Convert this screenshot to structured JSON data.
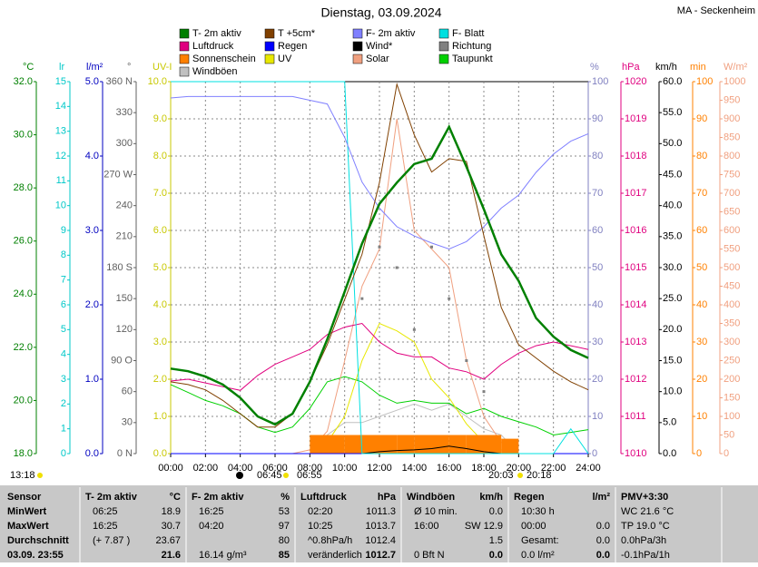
{
  "chart_data": {
    "type": "line",
    "title": "Dienstag, 03.09.2024",
    "location": "MA - Seckenheim",
    "x": [
      0,
      1,
      2,
      3,
      4,
      5,
      6,
      7,
      8,
      9,
      10,
      11,
      12,
      13,
      14,
      15,
      16,
      17,
      18,
      19,
      20,
      21,
      22,
      23,
      24
    ],
    "xlim": [
      0,
      24
    ],
    "xticks": [
      {
        "value": 0,
        "label": "00:00"
      },
      {
        "value": 2,
        "label": "02:00"
      },
      {
        "value": 4,
        "label": "04:00"
      },
      {
        "value": 6,
        "label": "06:00"
      },
      {
        "value": 8,
        "label": "08:00"
      },
      {
        "value": 10,
        "label": "10:00"
      },
      {
        "value": 12,
        "label": "12:00"
      },
      {
        "value": 14,
        "label": "14:00"
      },
      {
        "value": 16,
        "label": "16:00"
      },
      {
        "value": 18,
        "label": "18:00"
      },
      {
        "value": 20,
        "label": "20:00"
      },
      {
        "value": 22,
        "label": "22:00"
      },
      {
        "value": 24,
        "label": "24:00"
      }
    ],
    "grid": true,
    "axes": [
      {
        "unit": "°C",
        "color": "#008000",
        "lim": [
          18,
          32
        ],
        "ticks": [
          {
            "value": 18,
            "label": "18.0"
          },
          {
            "value": 20,
            "label": "20.0"
          },
          {
            "value": 22,
            "label": "22.0"
          },
          {
            "value": 24,
            "label": "24.0"
          },
          {
            "value": 26,
            "label": "26.0"
          },
          {
            "value": 28,
            "label": "28.0"
          },
          {
            "value": 30,
            "label": "30.0"
          },
          {
            "value": 32,
            "label": "32.0"
          }
        ]
      },
      {
        "unit": "lr",
        "color": "#00c8c8",
        "lim": [
          0,
          15
        ],
        "ticks": [
          0,
          1,
          2,
          3,
          4,
          5,
          6,
          7,
          8,
          9,
          10,
          11,
          12,
          13,
          14,
          15
        ]
      },
      {
        "unit": "l/m²",
        "color": "#0000c0",
        "lim": [
          0,
          5
        ],
        "ticks": [
          {
            "value": 0,
            "label": "0.0"
          },
          {
            "value": 1,
            "label": "1.0"
          },
          {
            "value": 2,
            "label": "2.0"
          },
          {
            "value": 3,
            "label": "3.0"
          },
          {
            "value": 4,
            "label": "4.0"
          },
          {
            "value": 5,
            "label": "5.0"
          }
        ]
      },
      {
        "unit": "°",
        "color": "#606060",
        "lim": [
          0,
          360
        ],
        "ticks": [
          {
            "value": 0,
            "label": "0 N"
          },
          30,
          60,
          {
            "value": 90,
            "label": "90 O"
          },
          120,
          150,
          {
            "value": 180,
            "label": "180 S"
          },
          210,
          240,
          {
            "value": 270,
            "label": "270 W"
          },
          300,
          330,
          {
            "value": 360,
            "label": "360 N"
          }
        ]
      },
      {
        "unit": "UV-I",
        "color": "#c8c800",
        "lim": [
          0,
          10
        ],
        "ticks": [
          {
            "value": 0,
            "label": "0.0"
          },
          {
            "value": 1,
            "label": "1.0"
          },
          {
            "value": 2,
            "label": "2.0"
          },
          {
            "value": 3,
            "label": "3.0"
          },
          {
            "value": 4,
            "label": "4.0"
          },
          {
            "value": 5,
            "label": "5.0"
          },
          {
            "value": 6,
            "label": "6.0"
          },
          {
            "value": 7,
            "label": "7.0"
          },
          {
            "value": 8,
            "label": "8.0"
          },
          {
            "value": 9,
            "label": "9.0"
          },
          {
            "value": 10,
            "label": "10.0"
          }
        ]
      },
      {
        "unit": "%",
        "color": "#8080c0",
        "lim": [
          0,
          100
        ],
        "ticks": [
          0,
          10,
          20,
          30,
          40,
          50,
          60,
          70,
          80,
          90,
          100
        ]
      },
      {
        "unit": "hPa",
        "color": "#e0007f",
        "lim": [
          1010,
          1020
        ],
        "ticks": [
          1010,
          1011,
          1012,
          1013,
          1014,
          1015,
          1016,
          1017,
          1018,
          1019,
          1020
        ]
      },
      {
        "unit": "km/h",
        "color": "#000000",
        "lim": [
          0,
          60
        ],
        "ticks": [
          {
            "value": 0,
            "label": "0.0"
          },
          {
            "value": 5,
            "label": "5.0"
          },
          {
            "value": 10,
            "label": "10.0"
          },
          {
            "value": 15,
            "label": "15.0"
          },
          {
            "value": 20,
            "label": "20.0"
          },
          {
            "value": 25,
            "label": "25.0"
          },
          {
            "value": 30,
            "label": "30.0"
          },
          {
            "value": 35,
            "label": "35.0"
          },
          {
            "value": 40,
            "label": "40.0"
          },
          {
            "value": 45,
            "label": "45.0"
          },
          {
            "value": 50,
            "label": "50.0"
          },
          {
            "value": 55,
            "label": "55.0"
          },
          {
            "value": 60,
            "label": "60.0"
          }
        ]
      },
      {
        "unit": "min",
        "color": "#ff8000",
        "lim": [
          0,
          100
        ],
        "ticks": [
          0,
          10,
          20,
          30,
          40,
          50,
          60,
          70,
          80,
          90,
          100
        ]
      },
      {
        "unit": "W/m²",
        "color": "#f0a080",
        "lim": [
          0,
          1000
        ],
        "ticks": [
          0,
          50,
          100,
          150,
          200,
          250,
          300,
          350,
          400,
          450,
          500,
          550,
          600,
          650,
          700,
          750,
          800,
          850,
          900,
          950,
          1000
        ]
      }
    ],
    "series": [
      {
        "name": "T- 2m aktiv",
        "color": "#008000",
        "axis": 0,
        "style": "line",
        "values": [
          21.2,
          21.1,
          20.9,
          20.6,
          20.1,
          19.4,
          19.1,
          19.5,
          20.7,
          22.3,
          24.1,
          25.9,
          27.4,
          28.2,
          28.9,
          29.1,
          30.3,
          28.8,
          27.2,
          25.5,
          24.5,
          23.1,
          22.4,
          21.9,
          21.6
        ]
      },
      {
        "name": "T +5cm*",
        "color": "#804000",
        "axis": 0,
        "style": "line",
        "values": [
          20.7,
          20.6,
          20.4,
          20.0,
          19.5,
          19.0,
          19.0,
          19.5,
          20.7,
          22.1,
          23.8,
          25.5,
          28.2,
          31.9,
          30.0,
          28.6,
          29.1,
          29.0,
          26.2,
          23.5,
          22.1,
          21.6,
          21.1,
          20.7,
          20.4
        ]
      },
      {
        "name": "F- 2m aktiv",
        "color": "#8080ff",
        "axis": 5,
        "style": "line",
        "values": [
          95.6,
          96,
          96,
          96,
          96,
          96,
          96,
          96,
          95,
          94,
          85,
          73,
          66,
          61,
          58.5,
          56.6,
          55,
          57,
          61,
          66,
          69.5,
          75.6,
          80.5,
          84,
          86
        ]
      },
      {
        "name": "F- Blatt",
        "color": "#00e0e0",
        "axis": 1,
        "style": "line",
        "values": [
          15,
          15,
          15,
          15,
          15,
          15,
          15,
          15,
          15,
          15,
          15,
          0,
          0,
          0,
          0,
          0,
          0,
          0,
          0,
          0,
          0,
          0,
          0,
          1,
          0
        ]
      },
      {
        "name": "Luftdruck",
        "color": "#e0007f",
        "axis": 6,
        "style": "line",
        "values": [
          1011.95,
          1012.0,
          1011.9,
          1011.8,
          1011.7,
          1012.1,
          1012.4,
          1012.6,
          1012.8,
          1013.2,
          1013.4,
          1013.5,
          1013.0,
          1012.7,
          1012.6,
          1012.6,
          1012.3,
          1012.2,
          1012.0,
          1012.4,
          1012.7,
          1012.9,
          1013.0,
          1012.9,
          1012.8
        ]
      },
      {
        "name": "Regen",
        "color": "#0000ff",
        "axis": 2,
        "style": "line",
        "values": [
          0,
          0,
          0,
          0,
          0,
          0,
          0,
          0,
          0,
          0,
          0,
          0,
          0,
          0,
          0,
          0,
          0,
          0,
          0,
          0,
          0,
          0,
          0,
          0,
          0
        ]
      },
      {
        "name": "Wind*",
        "color": "#000000",
        "axis": 7,
        "style": "line",
        "values": [
          0,
          0,
          0,
          0,
          0,
          0,
          0,
          0,
          0,
          0,
          0,
          0,
          0.3,
          0.5,
          0.6,
          0.8,
          1.2,
          0.8,
          0.3,
          0,
          0,
          0,
          0,
          0,
          0
        ]
      },
      {
        "name": "Richtung",
        "color": "#808080",
        "axis": 3,
        "style": "points",
        "values": [
          null,
          null,
          null,
          null,
          null,
          null,
          null,
          null,
          null,
          null,
          null,
          150,
          200,
          180,
          120,
          200,
          150,
          90,
          60,
          null,
          null,
          null,
          null,
          null,
          null
        ]
      },
      {
        "name": "Sonnenschein",
        "color": "#ff8000",
        "axis": 8,
        "style": "bar",
        "values": [
          0,
          0,
          0,
          0,
          0,
          0,
          0,
          0,
          5,
          5,
          5,
          5,
          5,
          5,
          5,
          5,
          5,
          5,
          5,
          4,
          0,
          0,
          0,
          0,
          0
        ]
      },
      {
        "name": "UV",
        "color": "#e8e800",
        "axis": 4,
        "style": "line",
        "values": [
          0,
          0,
          0,
          0,
          0,
          0,
          0,
          0,
          0,
          0.3,
          1,
          2.5,
          3.5,
          3.3,
          3,
          2,
          1.5,
          0.8,
          0.3,
          0.1,
          0,
          0,
          0,
          0,
          0
        ]
      },
      {
        "name": "Solar",
        "color": "#f0a080",
        "axis": 9,
        "style": "line",
        "values": [
          0,
          0,
          0,
          0,
          0,
          0,
          0,
          0,
          10,
          60,
          250,
          450,
          550,
          900,
          600,
          550,
          500,
          250,
          100,
          30,
          0,
          0,
          0,
          0,
          0
        ]
      },
      {
        "name": "Taupunkt",
        "color": "#00d000",
        "axis": 0,
        "style": "line",
        "values": [
          20.6,
          20.3,
          20.0,
          19.8,
          19.5,
          19.0,
          18.8,
          19.0,
          19.7,
          20.7,
          20.9,
          20.7,
          20.2,
          19.9,
          20.0,
          19.9,
          19.9,
          19.5,
          19.7,
          19.4,
          19.2,
          19.0,
          18.7,
          18.8,
          18.9
        ]
      },
      {
        "name": "Windböen",
        "color": "#c0c0c0",
        "axis": 7,
        "style": "line",
        "values": [
          0,
          0,
          0,
          0,
          0,
          0,
          0,
          0,
          0,
          3,
          5,
          5,
          6,
          7,
          8,
          7,
          8,
          6,
          4,
          3,
          0,
          0,
          0,
          0,
          0
        ]
      }
    ],
    "sun_times": [
      "13:18",
      "06:45",
      "06:55",
      "20:03",
      "20:18"
    ]
  },
  "table": {
    "labels": [
      "Sensor",
      "MinWert",
      "MaxWert",
      "Durchschnitt",
      "03.09. 23:55"
    ],
    "columns": [
      {
        "title": "T- 2m aktiv",
        "unit": "°C",
        "cells": [
          [
            "06:25",
            "18.9"
          ],
          [
            "16:25",
            "30.7"
          ],
          [
            "(+ 7.87 )",
            "23.67"
          ],
          [
            null,
            "21.6"
          ]
        ]
      },
      {
        "title": "F- 2m aktiv",
        "unit": "%",
        "cells": [
          [
            "16:25",
            "53"
          ],
          [
            "04:20",
            "97"
          ],
          [
            null,
            "80"
          ],
          [
            "16.14 g/m³",
            "85"
          ]
        ]
      },
      {
        "title": "Luftdruck",
        "unit": "hPa",
        "cells": [
          [
            "02:20",
            "1011.3"
          ],
          [
            "10:25",
            "1013.7"
          ],
          [
            "^0.8hPa/h",
            "1012.4"
          ],
          [
            "veränderlich",
            "1012.7"
          ]
        ]
      },
      {
        "title": "Windböen",
        "unit": "km/h",
        "cells": [
          [
            "Ø 10 min.",
            "0.0"
          ],
          [
            "16:00",
            "SW 12.9"
          ],
          [
            null,
            "1.5"
          ],
          [
            "0 Bft N",
            "0.0"
          ]
        ]
      },
      {
        "title": "Regen",
        "unit": "l/m²",
        "cells": [
          [
            "10:30 h",
            null
          ],
          [
            "00:00",
            "0.0"
          ],
          [
            "Gesamt:",
            "0.0"
          ],
          [
            "0.0 l/m²",
            "0.0"
          ]
        ]
      }
    ],
    "extra": [
      "PMV+3:30",
      "WC 21.6 °C",
      "TP 19.0 °C",
      "0.0hPa/3h",
      "-0.1hPa/1h"
    ]
  }
}
